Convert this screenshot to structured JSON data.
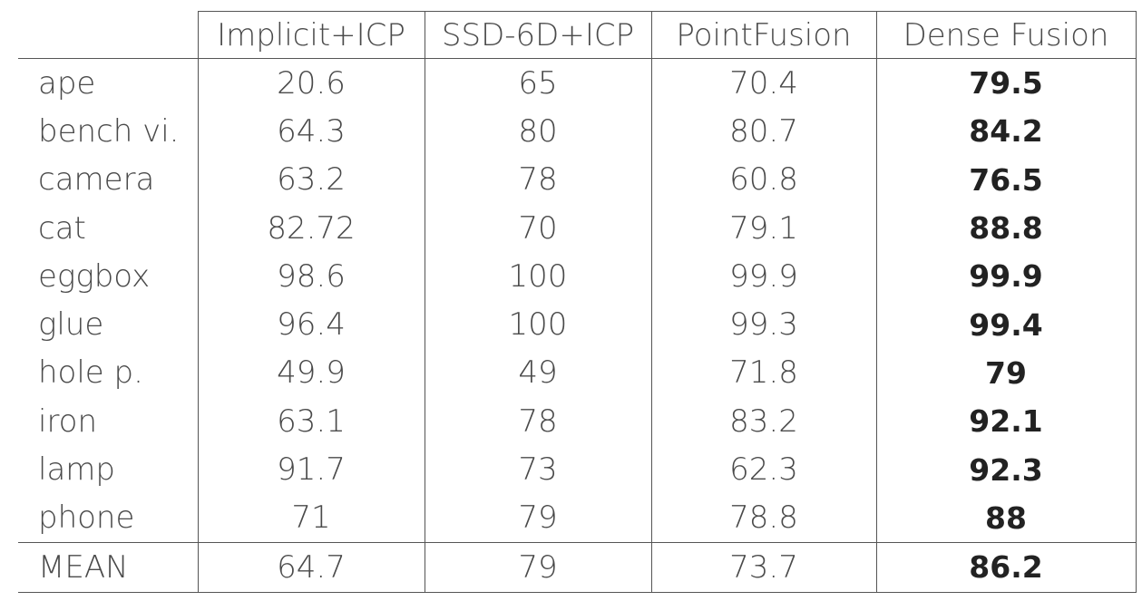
{
  "table": {
    "header": [
      "Implicit+ICP",
      "SSD-6D+ICP",
      "PointFusion",
      "Dense Fusion"
    ],
    "rows": [
      {
        "label": "ape",
        "values": [
          "20.6",
          "65",
          "70.4",
          "79.5"
        ]
      },
      {
        "label": "bench vi.",
        "values": [
          "64.3",
          "80",
          "80.7",
          "84.2"
        ]
      },
      {
        "label": "camera",
        "values": [
          "63.2",
          "78",
          "60.8",
          "76.5"
        ]
      },
      {
        "label": "cat",
        "values": [
          "82.72",
          "70",
          "79.1",
          "88.8"
        ]
      },
      {
        "label": "eggbox",
        "values": [
          "98.6",
          "100",
          "99.9",
          "99.9"
        ]
      },
      {
        "label": "glue",
        "values": [
          "96.4",
          "100",
          "99.3",
          "99.4"
        ]
      },
      {
        "label": "hole p.",
        "values": [
          "49.9",
          "49",
          "71.8",
          "79"
        ]
      },
      {
        "label": "iron",
        "values": [
          "63.1",
          "78",
          "83.2",
          "92.1"
        ]
      },
      {
        "label": "lamp",
        "values": [
          "91.7",
          "73",
          "62.3",
          "92.3"
        ]
      },
      {
        "label": "phone",
        "values": [
          "71",
          "79",
          "78.8",
          "88"
        ]
      }
    ],
    "summary": {
      "label": "MEAN",
      "values": [
        "64.7",
        "79",
        "73.7",
        "86.2"
      ]
    }
  }
}
